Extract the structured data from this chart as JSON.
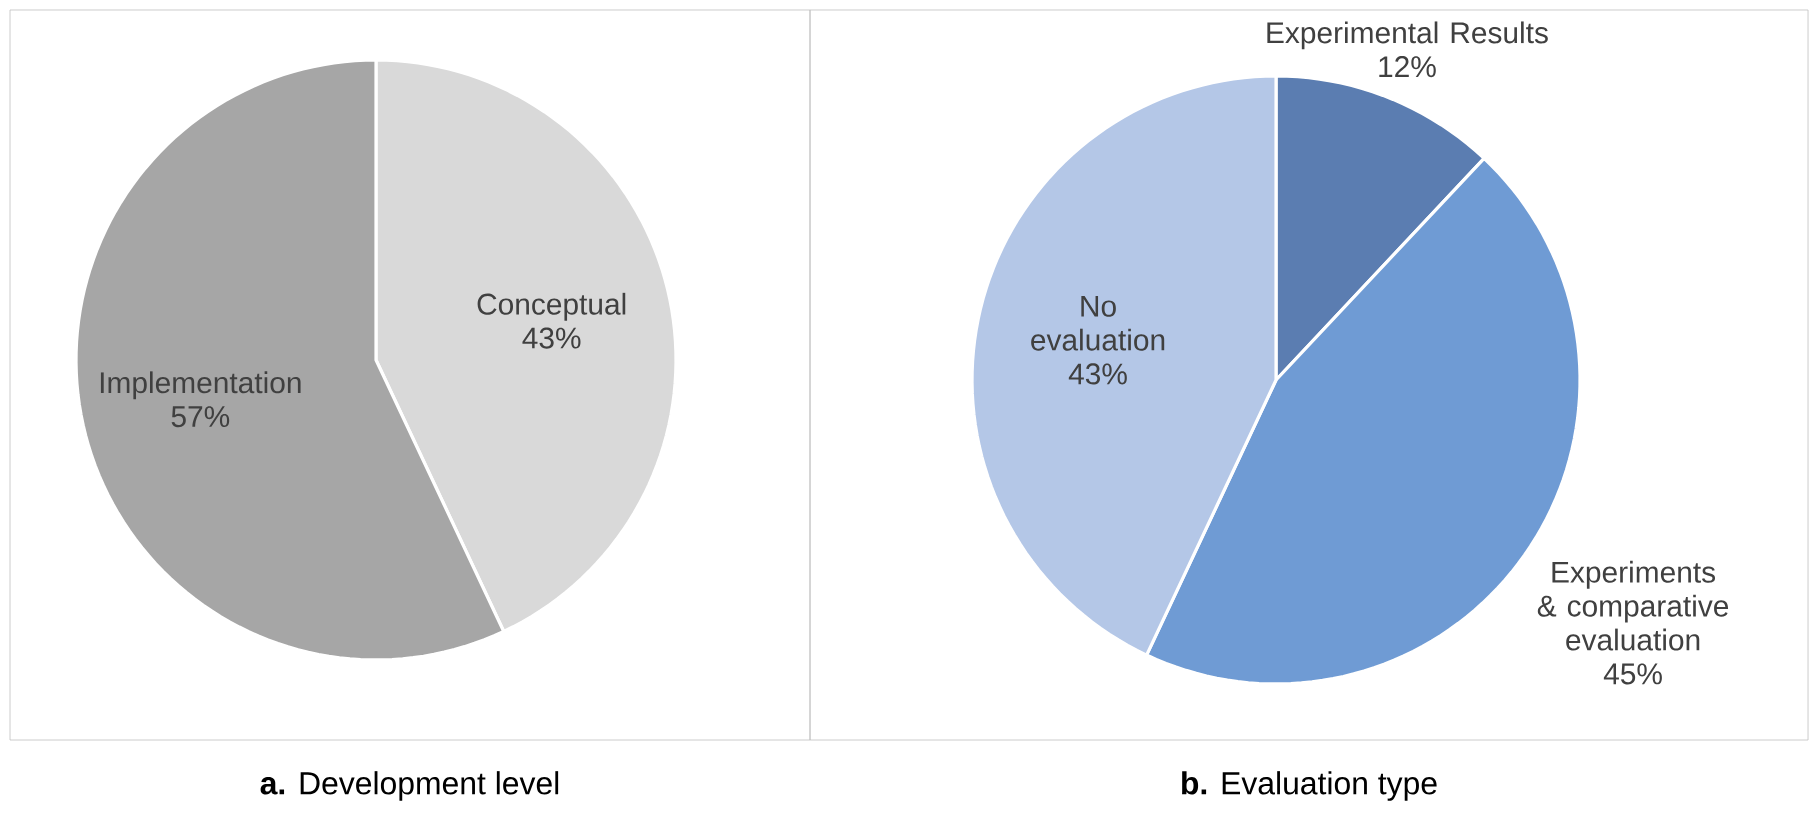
{
  "chart_data": [
    {
      "type": "pie",
      "title": "**a.** Development level",
      "categories": [
        "Conceptual",
        "Implementation"
      ],
      "values": [
        43,
        57
      ],
      "value_labels": [
        "43%",
        "57%"
      ],
      "colors": [
        "#d9d9d9",
        "#a6a6a6"
      ]
    },
    {
      "type": "pie",
      "title": "**b.** Evaluation type",
      "categories": [
        "Experimental Results",
        "Experiments & comparative evaluation",
        "No evaluation"
      ],
      "values": [
        12,
        45,
        43
      ],
      "value_labels": [
        "12%",
        "45%",
        "43%"
      ],
      "colors": [
        "#5b7db1",
        "#6f9bd4",
        "#b4c7e7"
      ]
    }
  ]
}
